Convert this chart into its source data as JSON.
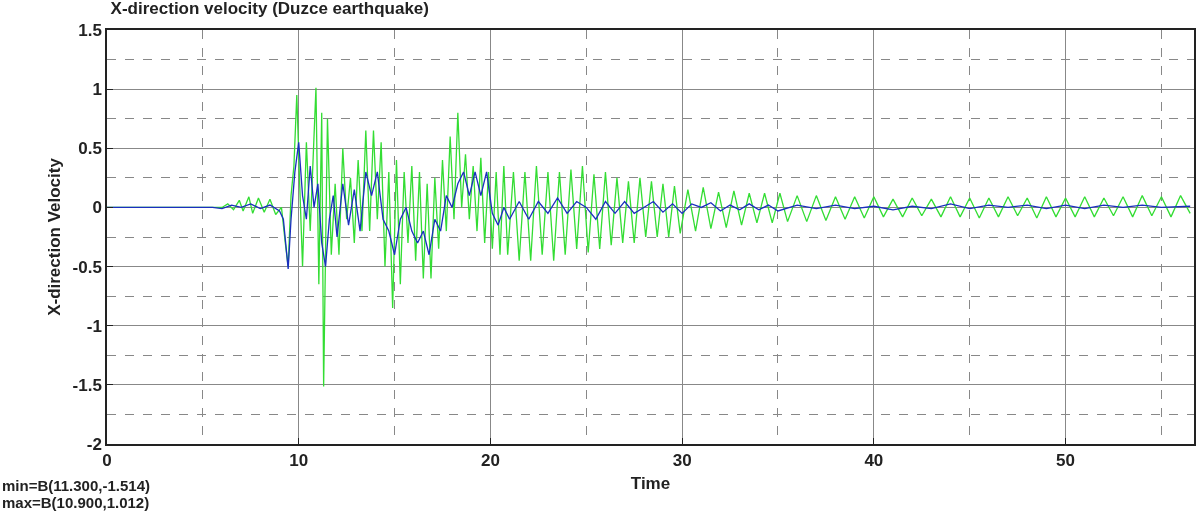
{
  "chart_data": {
    "type": "line",
    "title": "X-direction velocity (Duzce earthquake)",
    "xlabel": "Time",
    "ylabel": "X-direction Velocity",
    "xlim": [
      0,
      56.7
    ],
    "ylim": [
      -2,
      1.5
    ],
    "xticks": [
      0,
      {
        "value": 5,
        "label": null
      },
      10,
      {
        "value": 15,
        "label": null
      },
      20,
      {
        "value": 25,
        "label": null
      },
      30,
      {
        "value": 35,
        "label": null
      },
      40,
      {
        "value": 45,
        "label": null
      },
      50,
      {
        "value": 55,
        "label": null
      }
    ],
    "yticks": [
      -2,
      {
        "value": -1.75,
        "label": null
      },
      -1.5,
      {
        "value": -1.25,
        "label": null
      },
      -1,
      {
        "value": -0.75,
        "label": null
      },
      -0.5,
      {
        "value": -0.25,
        "label": null
      },
      0,
      {
        "value": 0.25,
        "label": null
      },
      0.5,
      {
        "value": 0.75,
        "label": null
      },
      1,
      {
        "value": 1.25,
        "label": null
      },
      1.5
    ],
    "grid": true,
    "marker": "none",
    "line_style": "solid",
    "annotations": [
      "min=B(11.300,-1.514)",
      "max=B(10.900,1.012)"
    ],
    "series": [
      {
        "color": "#33dd33",
        "x": [
          0,
          5.5,
          6,
          6.3,
          6.6,
          6.9,
          7.1,
          7.4,
          7.6,
          7.9,
          8.2,
          8.5,
          8.8,
          9.1,
          9.3,
          9.45,
          9.6,
          9.75,
          9.9,
          10.05,
          10.2,
          10.4,
          10.6,
          10.9,
          11.05,
          11.2,
          11.3,
          11.5,
          11.7,
          11.9,
          12.1,
          12.3,
          12.5,
          12.7,
          12.9,
          13.1,
          13.3,
          13.5,
          13.7,
          13.9,
          14.1,
          14.3,
          14.5,
          14.7,
          14.9,
          15.1,
          15.3,
          15.5,
          15.7,
          15.9,
          16.1,
          16.3,
          16.5,
          16.7,
          16.9,
          17.1,
          17.3,
          17.5,
          17.7,
          17.9,
          18.1,
          18.3,
          18.5,
          18.7,
          18.9,
          19.1,
          19.3,
          19.5,
          19.7,
          19.9,
          20.1,
          20.3,
          20.5,
          20.7,
          20.9,
          21.2,
          21.5,
          21.8,
          22.1,
          22.4,
          22.7,
          23.0,
          23.3,
          23.6,
          23.9,
          24.2,
          24.5,
          24.8,
          25.1,
          25.4,
          25.7,
          26.0,
          26.3,
          26.6,
          26.9,
          27.2,
          27.5,
          27.8,
          28.1,
          28.4,
          28.7,
          29.0,
          29.3,
          29.6,
          29.9,
          30.3,
          30.7,
          31.1,
          31.5,
          31.9,
          32.3,
          32.7,
          33.1,
          33.5,
          33.9,
          34.3,
          34.7,
          35.1,
          35.5,
          36,
          36.5,
          37,
          37.5,
          38,
          38.5,
          39,
          39.5,
          40,
          40.5,
          41,
          41.5,
          42,
          42.5,
          43,
          43.5,
          44,
          44.5,
          45,
          45.5,
          46,
          46.5,
          47,
          47.5,
          48,
          48.5,
          49,
          49.5,
          50,
          50.5,
          51,
          51.5,
          52,
          52.5,
          53,
          53.5,
          54,
          54.5,
          55,
          55.5,
          56,
          56.5
        ],
        "values": [
          0,
          0,
          0,
          0.03,
          -0.02,
          0.06,
          -0.03,
          0.09,
          -0.05,
          0.08,
          -0.04,
          0.07,
          -0.06,
          0,
          -0.3,
          -0.5,
          0.1,
          0.35,
          0.95,
          0.2,
          -0.5,
          0.55,
          -0.2,
          1.012,
          -0.65,
          0.8,
          -1.514,
          0.75,
          -0.4,
          0.2,
          -0.4,
          0.5,
          -0.1,
          0.25,
          -0.3,
          0.4,
          -0.2,
          0.65,
          -0.2,
          0.65,
          -0.1,
          0.55,
          -0.5,
          0.3,
          -0.85,
          0.4,
          -0.65,
          0.3,
          -0.3,
          0.35,
          -0.45,
          0.3,
          -0.6,
          0.2,
          -0.6,
          0.25,
          -0.35,
          0.4,
          -0.2,
          0.6,
          -0.1,
          0.8,
          0,
          0.45,
          -0.1,
          0.35,
          -0.2,
          0.42,
          -0.3,
          0.3,
          -0.35,
          0.3,
          -0.4,
          0.35,
          -0.4,
          0.3,
          -0.45,
          0.3,
          -0.45,
          0.35,
          -0.4,
          0.3,
          -0.45,
          0.3,
          -0.4,
          0.32,
          -0.35,
          0.35,
          -0.38,
          0.28,
          -0.35,
          0.3,
          -0.32,
          0.25,
          -0.3,
          0.22,
          -0.3,
          0.25,
          -0.25,
          0.22,
          -0.25,
          0.2,
          -0.25,
          0.18,
          -0.22,
          0.15,
          -0.2,
          0.17,
          -0.18,
          0.13,
          -0.17,
          0.14,
          -0.15,
          0.12,
          -0.13,
          0.12,
          -0.13,
          0.12,
          -0.12,
          0.1,
          -0.12,
          0.1,
          -0.11,
          0.09,
          -0.1,
          0.09,
          -0.09,
          0.09,
          -0.08,
          0.07,
          -0.08,
          0.08,
          -0.07,
          0.07,
          -0.08,
          0.09,
          -0.08,
          0.08,
          -0.09,
          0.08,
          -0.08,
          0.09,
          -0.07,
          0.08,
          -0.09,
          0.09,
          -0.08,
          0.08,
          -0.08,
          0.09,
          -0.08,
          0.08,
          -0.07,
          0.09,
          -0.08,
          0.1,
          -0.07,
          0.09,
          -0.08,
          0.1,
          -0.05
        ]
      },
      {
        "color": "#1a2fbf",
        "x": [
          0,
          5.5,
          6,
          6.5,
          7,
          7.5,
          8,
          8.5,
          9,
          9.2,
          9.45,
          9.6,
          9.8,
          10.0,
          10.2,
          10.4,
          10.6,
          10.8,
          11.0,
          11.2,
          11.4,
          11.6,
          11.8,
          12.0,
          12.3,
          12.6,
          12.9,
          13.2,
          13.5,
          13.8,
          14.1,
          14.4,
          14.7,
          15.0,
          15.3,
          15.6,
          15.9,
          16.2,
          16.5,
          16.8,
          17.1,
          17.4,
          17.7,
          18.0,
          18.3,
          18.6,
          18.9,
          19.2,
          19.5,
          19.8,
          20.1,
          20.4,
          20.7,
          21,
          21.5,
          22,
          22.5,
          23,
          23.5,
          24,
          24.5,
          25,
          25.5,
          26,
          26.5,
          27,
          27.5,
          28,
          28.5,
          29,
          29.5,
          30,
          30.5,
          31,
          31.5,
          32,
          32.5,
          33,
          33.5,
          34,
          34.5,
          35,
          36,
          37,
          38,
          39,
          40,
          41,
          42,
          43,
          44,
          45,
          46,
          47,
          48,
          49,
          50,
          51,
          52,
          53,
          54,
          55,
          56.5
        ],
        "values": [
          0,
          0,
          -0.01,
          0.02,
          0,
          0.03,
          -0.01,
          0.02,
          -0.03,
          -0.1,
          -0.52,
          -0.1,
          0.3,
          0.55,
          0.1,
          -0.1,
          0.35,
          0,
          0.2,
          -0.3,
          -0.5,
          -0.1,
          0.1,
          -0.25,
          0.2,
          -0.15,
          0.15,
          -0.2,
          0.3,
          0.1,
          0.3,
          -0.1,
          -0.2,
          -0.4,
          -0.1,
          0,
          -0.2,
          -0.3,
          -0.2,
          -0.4,
          -0.1,
          -0.2,
          0.1,
          0,
          0.2,
          0.3,
          0.1,
          0.3,
          0.1,
          0.3,
          -0.05,
          -0.15,
          0,
          -0.1,
          0.05,
          -0.1,
          0.05,
          -0.05,
          0.08,
          -0.05,
          0.05,
          0,
          -0.1,
          0.05,
          -0.05,
          0.05,
          -0.05,
          0,
          0.05,
          -0.04,
          0.03,
          -0.05,
          0.03,
          0,
          0.04,
          -0.03,
          0.02,
          -0.02,
          0.03,
          -0.02,
          0.02,
          -0.03,
          0.02,
          -0.01,
          0.02,
          -0.01,
          0.01,
          -0.02,
          0.01,
          -0.01,
          0.03,
          -0.01,
          0.02,
          0,
          0.02,
          -0.01,
          0.02,
          -0.01,
          0.02,
          0,
          0.02,
          0,
          0.01
        ]
      }
    ]
  }
}
